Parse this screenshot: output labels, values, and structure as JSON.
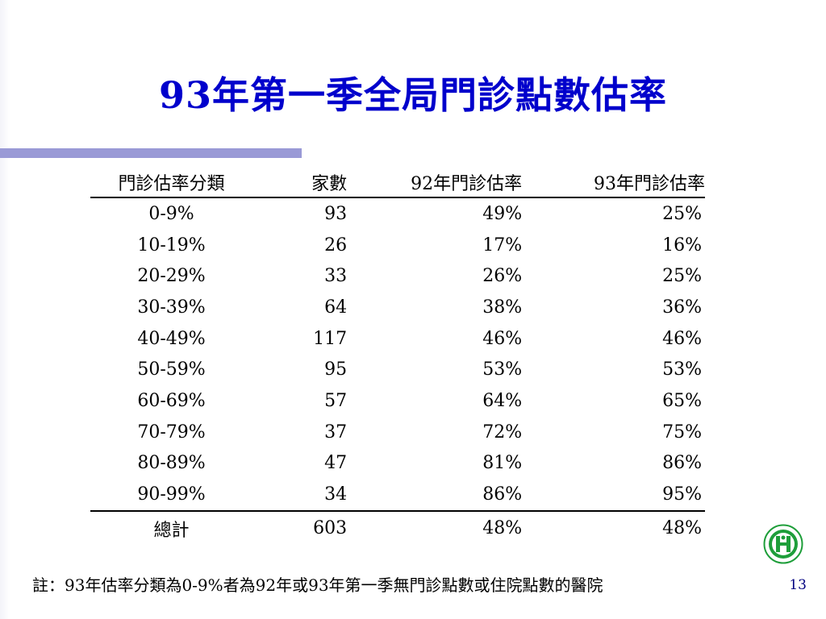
{
  "slide": {
    "title": "93年第一季全局門診點數估率",
    "page_number": "13",
    "footnote": "註：93年估率分類為0-9%者為92年或93年第一季無門診點數或住院點數的醫院"
  },
  "table": {
    "headers": [
      "門診估率分類",
      "家數",
      "92年門診估率",
      "93年門診估率"
    ],
    "rows": [
      [
        "0-9%",
        "93",
        "49%",
        "25%"
      ],
      [
        "10-19%",
        "26",
        "17%",
        "16%"
      ],
      [
        "20-29%",
        "33",
        "26%",
        "25%"
      ],
      [
        "30-39%",
        "64",
        "38%",
        "36%"
      ],
      [
        "40-49%",
        "117",
        "46%",
        "46%"
      ],
      [
        "50-59%",
        "95",
        "53%",
        "53%"
      ],
      [
        "60-69%",
        "57",
        "64%",
        "65%"
      ],
      [
        "70-79%",
        "37",
        "72%",
        "75%"
      ],
      [
        "80-89%",
        "47",
        "81%",
        "86%"
      ],
      [
        "90-99%",
        "34",
        "86%",
        "95%"
      ]
    ],
    "total": [
      "總計",
      "603",
      "48%",
      "48%"
    ]
  },
  "colors": {
    "title": "#0000cc",
    "accent_bar": "#9a9ad6",
    "logo_green": "#1e9e3a"
  },
  "icons": {
    "logo": "bureau-emblem-icon"
  }
}
